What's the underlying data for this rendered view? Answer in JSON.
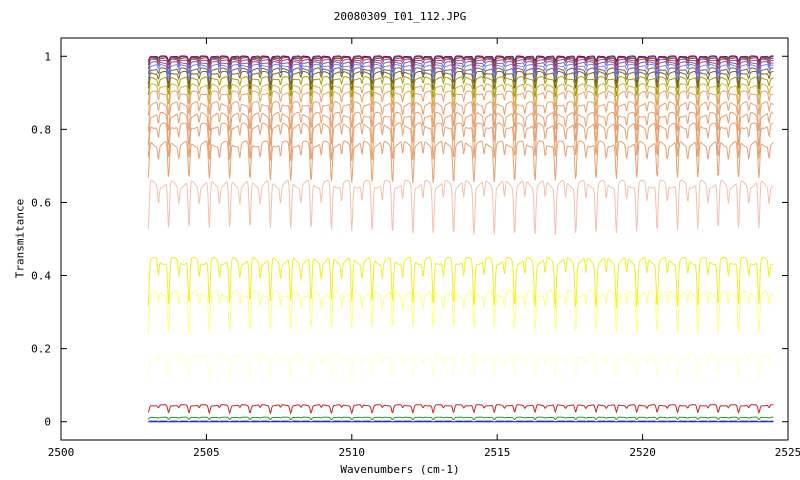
{
  "chart_data": {
    "type": "line",
    "title": "20080309_I01_112.JPG",
    "xlabel": "Wavenumbers (cm-1)",
    "ylabel": "Transmitance",
    "xlim": [
      2500,
      2525
    ],
    "ylim": [
      -0.05,
      1.05
    ],
    "x_range": [
      2503,
      2524.5
    ],
    "xticks": [
      "2500",
      "2505",
      "2510",
      "2515",
      "2520",
      "2525"
    ],
    "yticks": [
      "0",
      "0.2",
      "0.4",
      "0.6",
      "0.8",
      "1"
    ],
    "xtick_values": [
      2500,
      2505,
      2510,
      2515,
      2520,
      2525
    ],
    "ytick_values": [
      0,
      0.2,
      0.4,
      0.6,
      0.8,
      1.0
    ],
    "grid": false,
    "legend": "none",
    "line_spacing_cm1": 0.7,
    "series": [
      {
        "baseline": 0.0,
        "depth": 0.0,
        "color": "#000080"
      },
      {
        "baseline": 0.002,
        "depth": 0.002,
        "color": "#4060ff"
      },
      {
        "baseline": 0.012,
        "depth": 0.006,
        "color": "#20a020"
      },
      {
        "baseline": 0.045,
        "depth": 0.02,
        "color": "#cc2020"
      },
      {
        "baseline": 0.18,
        "depth": 0.06,
        "color": "#ffffd0"
      },
      {
        "baseline": 0.35,
        "depth": 0.1,
        "color": "#ffff80"
      },
      {
        "baseline": 0.44,
        "depth": 0.12,
        "color": "#f0f020"
      },
      {
        "baseline": 0.65,
        "depth": 0.13,
        "color": "#f4c0b0"
      },
      {
        "baseline": 0.76,
        "depth": 0.1,
        "color": "#e8a070"
      },
      {
        "baseline": 0.81,
        "depth": 0.09,
        "color": "#e8a070"
      },
      {
        "baseline": 0.84,
        "depth": 0.08,
        "color": "#e8a070"
      },
      {
        "baseline": 0.87,
        "depth": 0.07,
        "color": "#e8a070"
      },
      {
        "baseline": 0.9,
        "depth": 0.06,
        "color": "#e8a070"
      },
      {
        "baseline": 0.92,
        "depth": 0.055,
        "color": "#d0b040"
      },
      {
        "baseline": 0.94,
        "depth": 0.05,
        "color": "#a0a000"
      },
      {
        "baseline": 0.955,
        "depth": 0.045,
        "color": "#806020"
      },
      {
        "baseline": 0.965,
        "depth": 0.04,
        "color": "#606060"
      },
      {
        "baseline": 0.975,
        "depth": 0.035,
        "color": "#8080e0"
      },
      {
        "baseline": 0.983,
        "depth": 0.03,
        "color": "#6060c0"
      },
      {
        "baseline": 0.99,
        "depth": 0.025,
        "color": "#a04080"
      },
      {
        "baseline": 0.995,
        "depth": 0.02,
        "color": "#c02020"
      },
      {
        "baseline": 0.998,
        "depth": 0.015,
        "color": "#208040"
      },
      {
        "baseline": 1.0,
        "depth": 0.012,
        "color": "#800080"
      }
    ]
  }
}
